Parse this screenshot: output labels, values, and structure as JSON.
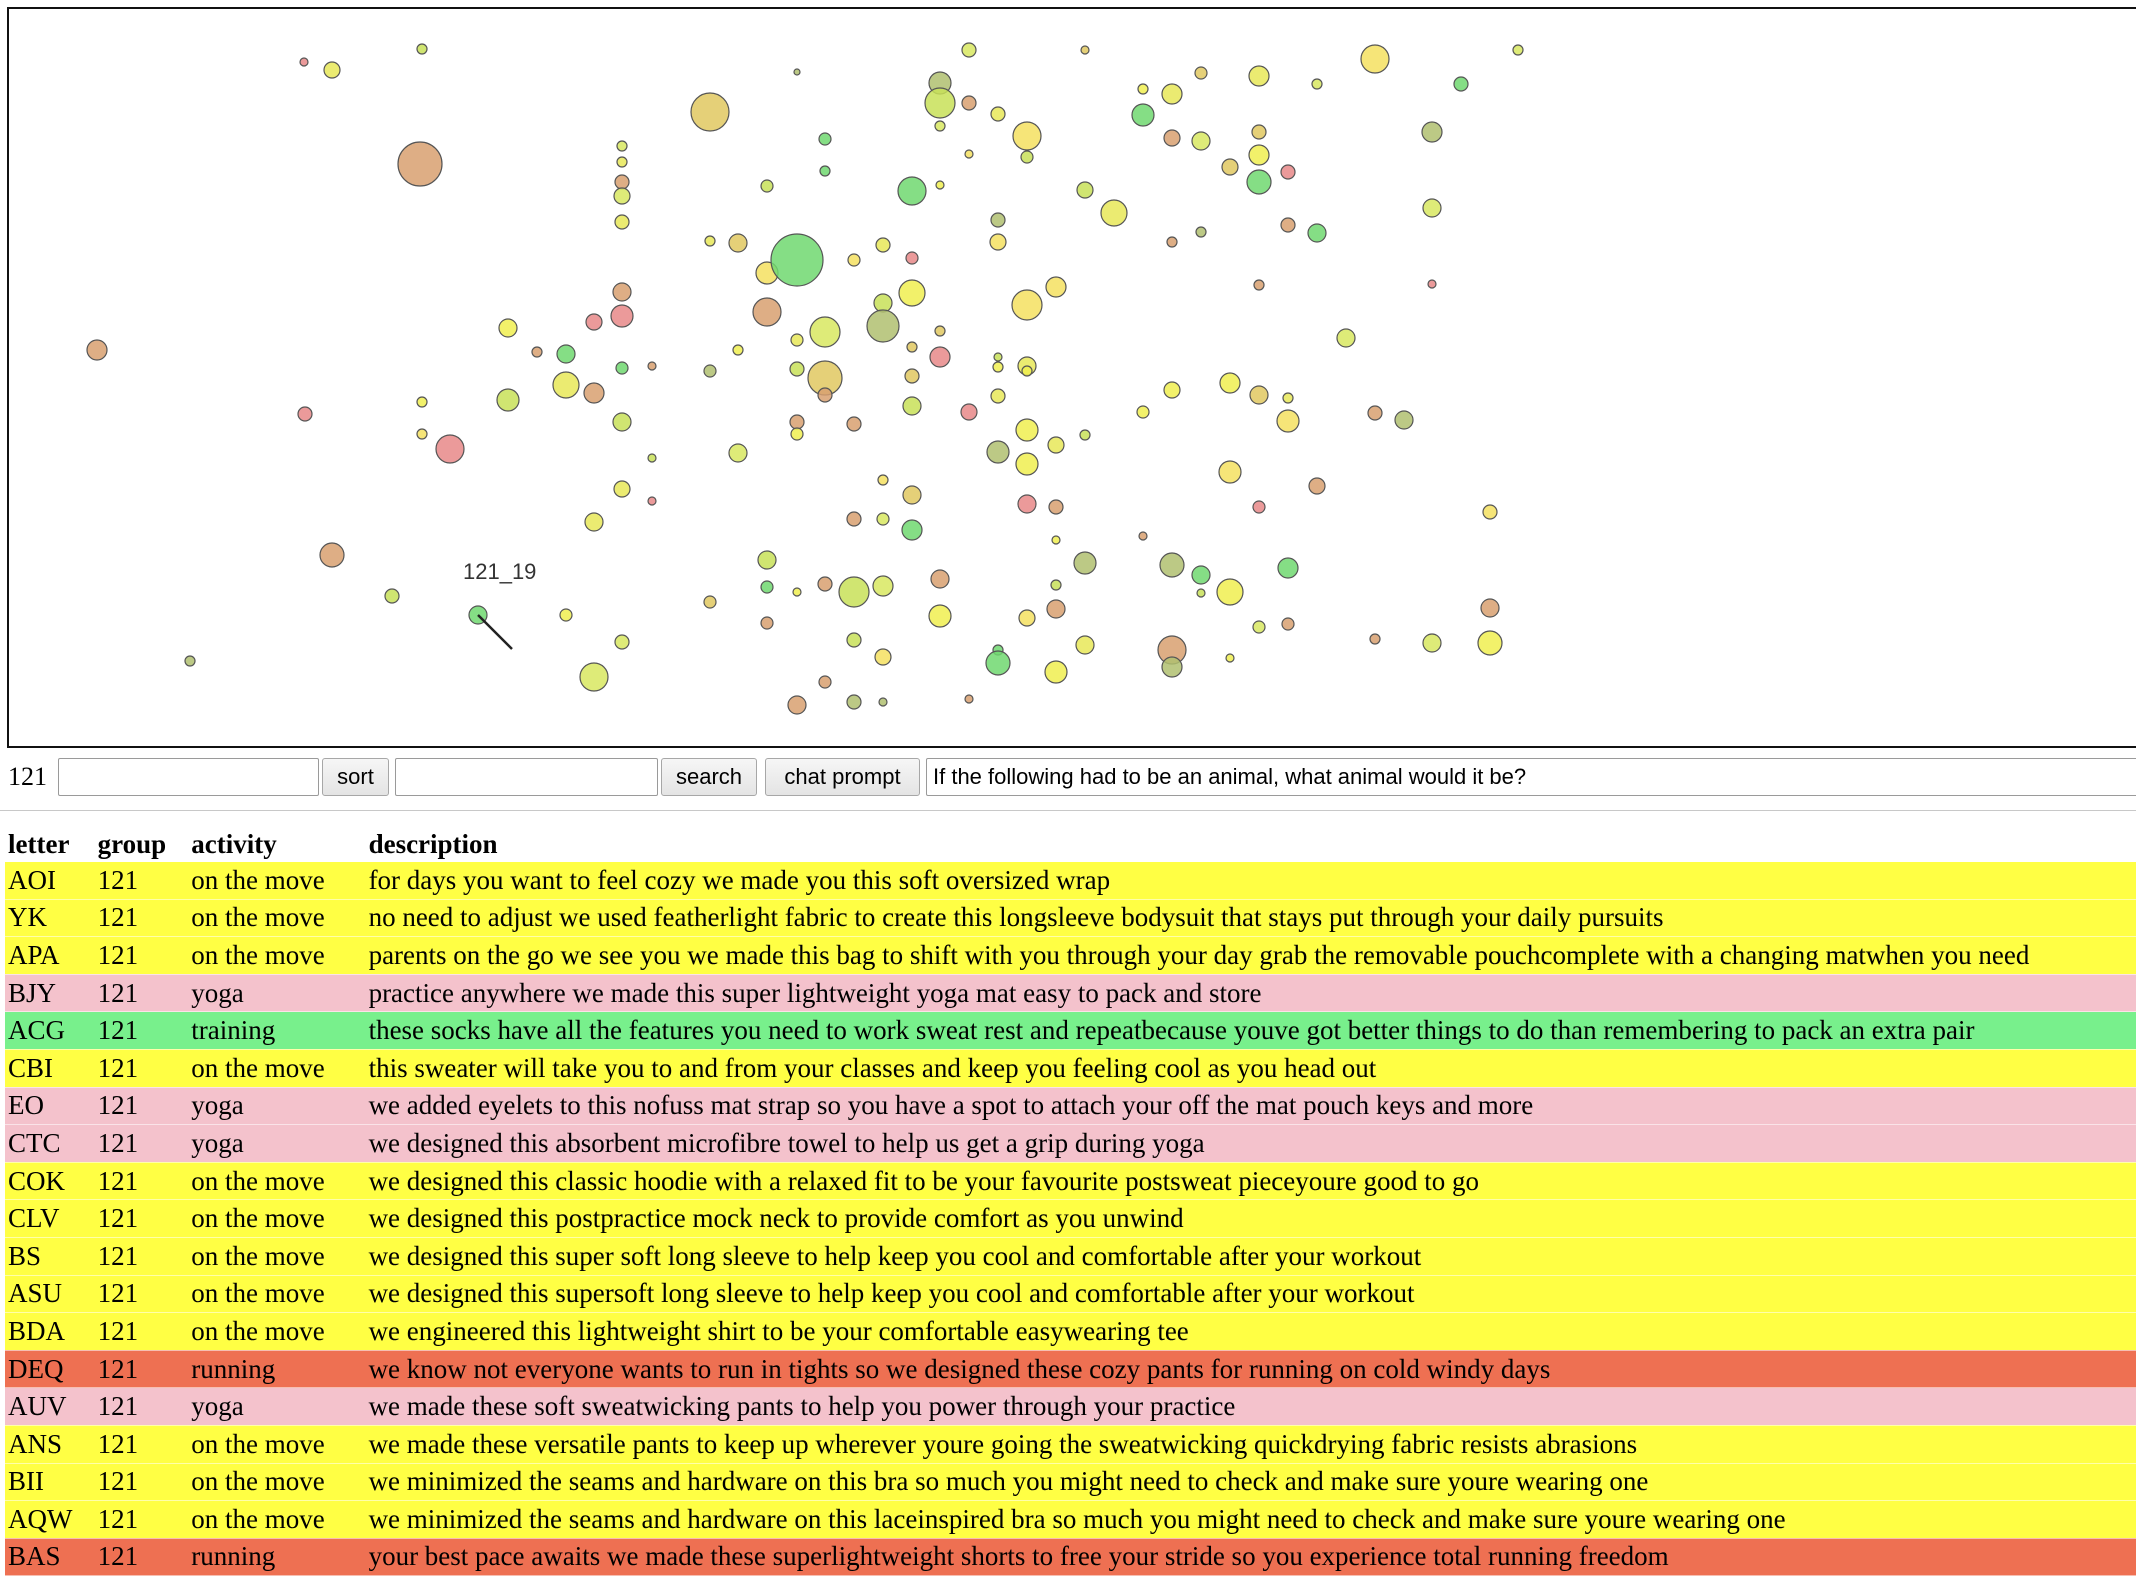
{
  "scatter": {
    "hover_label": "121_19",
    "points_note": "bubble scatter of items; colors follow activity",
    "colors": {
      "on_the_move": "#ffff44",
      "yoga": "#f4c2cc",
      "training": "#66ee77",
      "running": "#f07050"
    }
  },
  "toolbar": {
    "group_value": "121",
    "sort_input_value": "",
    "sort_label": "sort",
    "search_input_value": "",
    "search_label": "search",
    "chat_prompt_label": "chat prompt",
    "prompt_value": "If the following had to be an animal, what animal would it be?"
  },
  "table": {
    "headers": {
      "letter": "letter",
      "group": "group",
      "activity": "activity",
      "description": "description"
    },
    "row_colors": {
      "on the move": "#ffff44",
      "yoga": "#f4c2cc",
      "training": "#78f08c",
      "running": "#ee7052"
    },
    "rows": [
      {
        "letter": "AOI",
        "group": "121",
        "activity": "on the move",
        "description": "for days you want to feel cozy we made you this soft oversized wrap"
      },
      {
        "letter": "YK",
        "group": "121",
        "activity": "on the move",
        "description": "no need to adjust we used featherlight fabric to create this longsleeve bodysuit that stays put through your daily pursuits"
      },
      {
        "letter": "APA",
        "group": "121",
        "activity": "on the move",
        "description": "parents on the go we see you we made this bag to shift with you through your day grab the removable pouchcomplete with a changing matwhen you need"
      },
      {
        "letter": "BJY",
        "group": "121",
        "activity": "yoga",
        "description": "practice anywhere we made this super lightweight yoga mat easy to pack and store"
      },
      {
        "letter": "ACG",
        "group": "121",
        "activity": "training",
        "description": "these socks have all the features you need to work sweat rest and repeatbecause youve got better things to do than remembering to pack an extra pair"
      },
      {
        "letter": "CBI",
        "group": "121",
        "activity": "on the move",
        "description": "this sweater will take you to and from your classes and keep you feeling cool as you head out"
      },
      {
        "letter": "EO",
        "group": "121",
        "activity": "yoga",
        "description": "we added eyelets to this nofuss mat strap so you have a spot to attach your off the mat pouch keys and more"
      },
      {
        "letter": "CTC",
        "group": "121",
        "activity": "yoga",
        "description": "we designed this absorbent microfibre towel to help us get a grip during yoga"
      },
      {
        "letter": "COK",
        "group": "121",
        "activity": "on the move",
        "description": "we designed this classic hoodie with a relaxed fit to be your favourite postsweat pieceyoure good to go"
      },
      {
        "letter": "CLV",
        "group": "121",
        "activity": "on the move",
        "description": "we designed this postpractice mock neck to provide comfort as you unwind"
      },
      {
        "letter": "BS",
        "group": "121",
        "activity": "on the move",
        "description": "we designed this super soft long sleeve to help keep you cool and comfortable after your workout"
      },
      {
        "letter": "ASU",
        "group": "121",
        "activity": "on the move",
        "description": "we designed this supersoft long sleeve to help keep you cool and comfortable after your workout"
      },
      {
        "letter": "BDA",
        "group": "121",
        "activity": "on the move",
        "description": "we engineered this lightweight shirt to be your comfortable easywearing tee"
      },
      {
        "letter": "DEQ",
        "group": "121",
        "activity": "running",
        "description": "we know not everyone wants to run in tights so we designed these cozy pants for running on cold windy days"
      },
      {
        "letter": "AUV",
        "group": "121",
        "activity": "yoga",
        "description": "we made these soft sweatwicking pants to help you power through your practice"
      },
      {
        "letter": "ANS",
        "group": "121",
        "activity": "on the move",
        "description": "we made these versatile pants to keep up wherever youre going the sweatwicking quickdrying fabric resists abrasions"
      },
      {
        "letter": "BII",
        "group": "121",
        "activity": "on the move",
        "description": "we minimized the seams and hardware on this bra so much you might need to check and make sure youre wearing one"
      },
      {
        "letter": "AQW",
        "group": "121",
        "activity": "on the move",
        "description": "we minimized the seams and hardware on this laceinspired bra so much you might need to check and make sure youre wearing one"
      },
      {
        "letter": "BAS",
        "group": "121",
        "activity": "running",
        "description": "your best pace awaits we made these superlightweight shorts to free your stride so you experience total running freedom"
      }
    ]
  }
}
